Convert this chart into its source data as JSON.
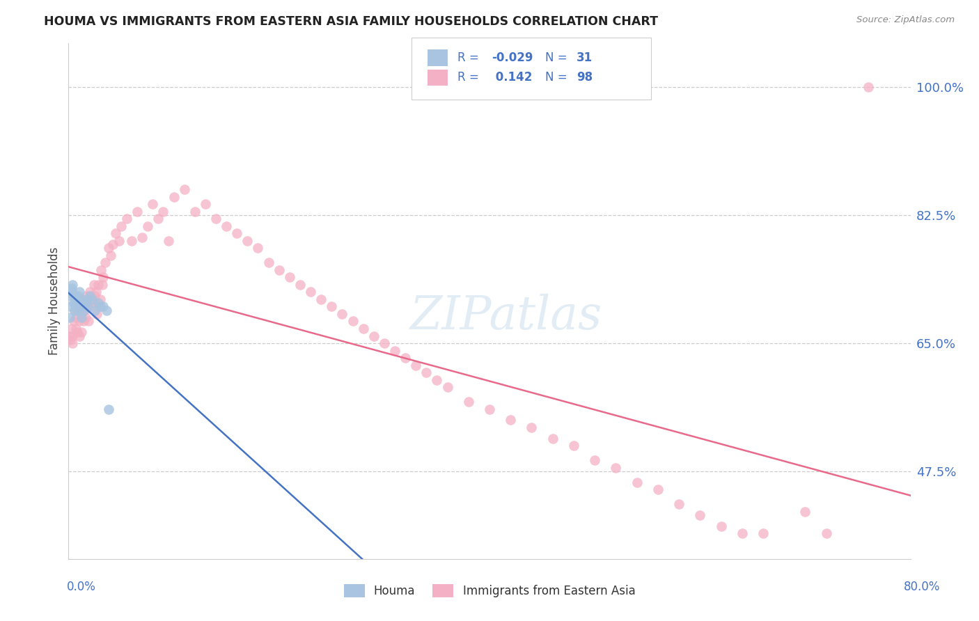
{
  "title": "HOUMA VS IMMIGRANTS FROM EASTERN ASIA FAMILY HOUSEHOLDS CORRELATION CHART",
  "source": "Source: ZipAtlas.com",
  "ylabel": "Family Households",
  "legend_houma": "Houma",
  "legend_immigrants": "Immigrants from Eastern Asia",
  "R_houma": -0.029,
  "N_houma": 31,
  "R_immigrants": 0.142,
  "N_immigrants": 98,
  "color_houma": "#a8c4e0",
  "color_houma_line": "#4472c4",
  "color_immigrants": "#f4b0c4",
  "color_immigrants_line": "#e8698a",
  "color_label": "#4472c4",
  "xmin": 0.0,
  "xmax": 0.8,
  "ymin": 0.355,
  "ymax": 1.06,
  "yticks": [
    0.475,
    0.65,
    0.825,
    1.0
  ],
  "ytick_labels": [
    "47.5%",
    "65.0%",
    "82.5%",
    "100.0%"
  ],
  "watermark": "ZIPatlas",
  "houma_x": [
    0.001,
    0.002,
    0.002,
    0.003,
    0.003,
    0.004,
    0.005,
    0.005,
    0.006,
    0.007,
    0.007,
    0.008,
    0.009,
    0.01,
    0.01,
    0.011,
    0.012,
    0.013,
    0.014,
    0.015,
    0.016,
    0.017,
    0.018,
    0.02,
    0.022,
    0.025,
    0.028,
    0.03,
    0.033,
    0.036,
    0.038
  ],
  "houma_y": [
    0.685,
    0.7,
    0.715,
    0.725,
    0.72,
    0.73,
    0.705,
    0.715,
    0.695,
    0.71,
    0.7,
    0.695,
    0.715,
    0.72,
    0.71,
    0.7,
    0.685,
    0.705,
    0.695,
    0.7,
    0.705,
    0.71,
    0.7,
    0.715,
    0.71,
    0.695,
    0.705,
    0.7,
    0.7,
    0.695,
    0.56
  ],
  "immigrants_x": [
    0.001,
    0.002,
    0.003,
    0.004,
    0.004,
    0.005,
    0.006,
    0.007,
    0.007,
    0.008,
    0.009,
    0.01,
    0.01,
    0.011,
    0.012,
    0.012,
    0.013,
    0.014,
    0.015,
    0.016,
    0.017,
    0.018,
    0.019,
    0.02,
    0.021,
    0.022,
    0.023,
    0.024,
    0.025,
    0.026,
    0.027,
    0.028,
    0.029,
    0.03,
    0.031,
    0.032,
    0.033,
    0.035,
    0.038,
    0.04,
    0.042,
    0.045,
    0.048,
    0.05,
    0.055,
    0.06,
    0.065,
    0.07,
    0.075,
    0.08,
    0.085,
    0.09,
    0.095,
    0.1,
    0.11,
    0.12,
    0.13,
    0.14,
    0.15,
    0.16,
    0.17,
    0.18,
    0.19,
    0.2,
    0.21,
    0.22,
    0.23,
    0.24,
    0.25,
    0.26,
    0.27,
    0.28,
    0.29,
    0.3,
    0.31,
    0.32,
    0.33,
    0.34,
    0.35,
    0.36,
    0.38,
    0.4,
    0.42,
    0.44,
    0.46,
    0.48,
    0.5,
    0.52,
    0.54,
    0.56,
    0.58,
    0.6,
    0.62,
    0.64,
    0.66,
    0.7,
    0.72,
    0.76
  ],
  "immigrants_y": [
    0.66,
    0.655,
    0.67,
    0.65,
    0.66,
    0.68,
    0.695,
    0.67,
    0.685,
    0.665,
    0.7,
    0.66,
    0.68,
    0.7,
    0.69,
    0.665,
    0.71,
    0.68,
    0.695,
    0.685,
    0.715,
    0.7,
    0.68,
    0.72,
    0.7,
    0.71,
    0.705,
    0.73,
    0.715,
    0.72,
    0.69,
    0.73,
    0.7,
    0.71,
    0.75,
    0.73,
    0.74,
    0.76,
    0.78,
    0.77,
    0.785,
    0.8,
    0.79,
    0.81,
    0.82,
    0.79,
    0.83,
    0.795,
    0.81,
    0.84,
    0.82,
    0.83,
    0.79,
    0.85,
    0.86,
    0.83,
    0.84,
    0.82,
    0.81,
    0.8,
    0.79,
    0.78,
    0.76,
    0.75,
    0.74,
    0.73,
    0.72,
    0.71,
    0.7,
    0.69,
    0.68,
    0.67,
    0.66,
    0.65,
    0.64,
    0.63,
    0.62,
    0.61,
    0.6,
    0.59,
    0.57,
    0.56,
    0.545,
    0.535,
    0.52,
    0.51,
    0.49,
    0.48,
    0.46,
    0.45,
    0.43,
    0.415,
    0.4,
    0.39,
    0.39,
    0.42,
    0.39,
    1.0
  ]
}
